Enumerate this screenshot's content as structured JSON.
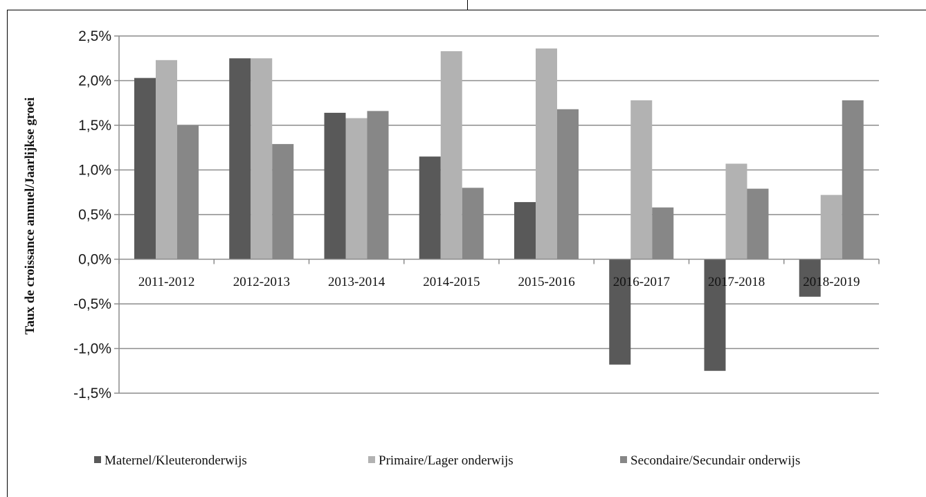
{
  "chart_data": {
    "type": "bar",
    "title": "",
    "xlabel": "",
    "ylabel": "Taux de croissance annuel/Jaarlijkse groei",
    "ylim": [
      -1.5,
      2.5
    ],
    "ytick_step": 0.5,
    "yticks": [
      "2,5%",
      "2,0%",
      "1,5%",
      "1,0%",
      "0,5%",
      "0,0%",
      "-0,5%",
      "-1,0%",
      "-1,5%"
    ],
    "categories": [
      "2011-2012",
      "2012-2013",
      "2013-2014",
      "2014-2015",
      "2015-2016",
      "2016-2017",
      "2017-2018",
      "2018-2019"
    ],
    "series": [
      {
        "name": "Maternel/Kleuteronderwijs",
        "color": "#595959",
        "values": [
          2.03,
          2.25,
          1.64,
          1.15,
          0.64,
          -1.18,
          -1.25,
          -0.42
        ]
      },
      {
        "name": "Primaire/Lager onderwijs",
        "color": "#b2b2b2",
        "values": [
          2.23,
          2.25,
          1.58,
          2.33,
          2.36,
          1.78,
          1.07,
          0.72
        ]
      },
      {
        "name": "Secondaire/Secundair onderwijs",
        "color": "#878787",
        "values": [
          1.5,
          1.29,
          1.66,
          0.8,
          1.68,
          0.58,
          0.79,
          1.78
        ]
      }
    ],
    "grid": true,
    "legend_position": "bottom"
  }
}
